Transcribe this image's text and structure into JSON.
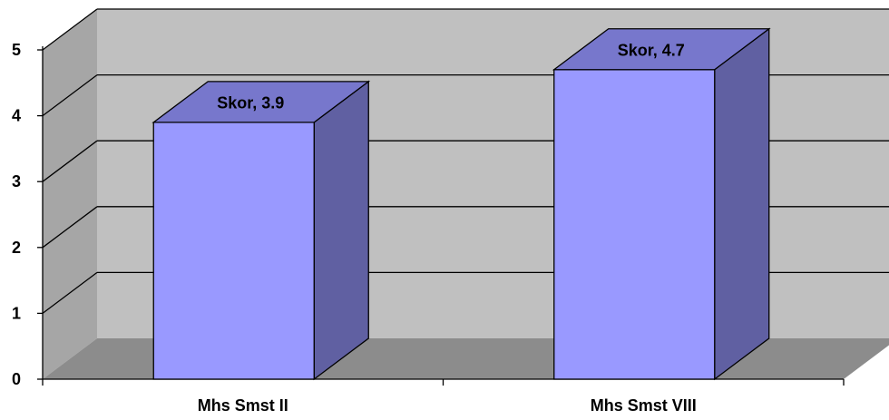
{
  "chart_data": {
    "type": "bar",
    "categories": [
      "Mhs Smst II",
      "Mhs Smst VIII"
    ],
    "series": [
      {
        "name": "Skor",
        "values": [
          3.9,
          4.7
        ]
      }
    ],
    "data_labels": [
      "Skor, 3.9",
      "Skor, 4.7"
    ],
    "y_ticks": [
      "0",
      "1",
      "2",
      "3",
      "4",
      "5"
    ],
    "ylim": [
      0,
      5
    ],
    "grid": true,
    "style": "3d-column",
    "colors": {
      "bar_front": "#9999ff",
      "bar_top": "#7777cc",
      "bar_side": "#6060a2",
      "back_wall": "#c0c0c0",
      "side_wall": "#a6a6a6",
      "floor": "#8c8c8c",
      "gridline": "#000000"
    }
  }
}
